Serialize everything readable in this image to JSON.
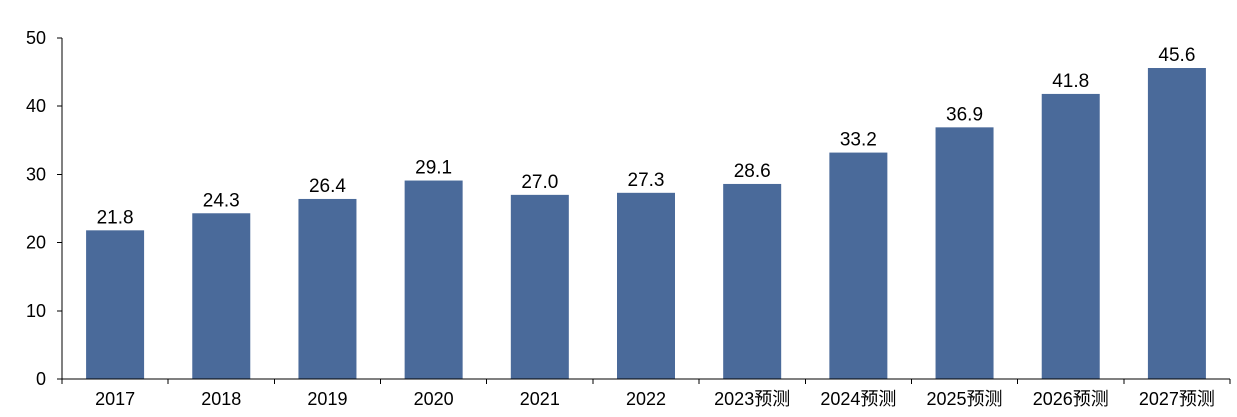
{
  "chart_data": {
    "type": "bar",
    "title": "",
    "xlabel": "",
    "ylabel": "",
    "categories": [
      "2017",
      "2018",
      "2019",
      "2020",
      "2021",
      "2022",
      "2023预测",
      "2024预测",
      "2025预测",
      "2026预测",
      "2027预测"
    ],
    "values": [
      21.8,
      24.3,
      26.4,
      29.1,
      27.0,
      27.3,
      28.6,
      33.2,
      36.9,
      41.8,
      45.6
    ],
    "value_labels": [
      "21.8",
      "24.3",
      "26.4",
      "29.1",
      "27.0",
      "27.3",
      "28.6",
      "33.2",
      "36.9",
      "41.8",
      "45.6"
    ],
    "ylim": [
      0,
      50
    ],
    "yticks": [
      "0",
      "10",
      "20",
      "30",
      "40",
      "50"
    ],
    "grid": false,
    "legend": "none",
    "bar_color": "#4A6A9A"
  }
}
